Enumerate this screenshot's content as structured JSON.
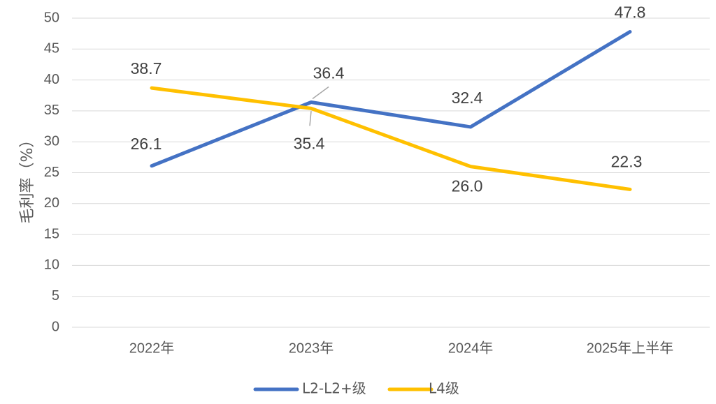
{
  "chart_data": {
    "type": "line",
    "categories": [
      "2022年",
      "2023年",
      "2024年",
      "2025年上半年"
    ],
    "ylabel": "毛利率（%）",
    "ylim": [
      0,
      50
    ],
    "yticks": [
      0,
      5,
      10,
      15,
      20,
      25,
      30,
      35,
      40,
      45,
      50
    ],
    "grid": true,
    "legend_position": "bottom",
    "series": [
      {
        "name": "L2-L2+级",
        "values": [
          26.1,
          36.4,
          32.4,
          47.8
        ],
        "labels": [
          "26.1",
          "36.4",
          "32.4",
          "47.8"
        ],
        "color": "#4472c4"
      },
      {
        "name": "L4级",
        "values": [
          38.7,
          35.4,
          26.0,
          22.3
        ],
        "labels": [
          "38.7",
          "35.4",
          "26.0",
          "22.3"
        ],
        "color": "#ffc000"
      }
    ]
  }
}
